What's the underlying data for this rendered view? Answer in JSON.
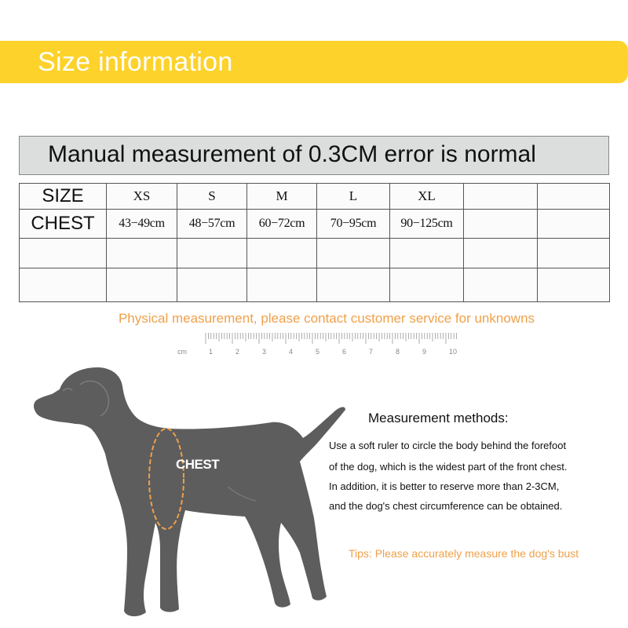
{
  "banner": {
    "title": "Size information"
  },
  "notice": {
    "text": "Manual measurement of 0.3CM error is normal"
  },
  "table": {
    "rows": [
      [
        "SIZE",
        "XS",
        "S",
        "M",
        "L",
        "XL",
        "",
        ""
      ],
      [
        "CHEST",
        "43−49cm",
        "48−57cm",
        "60−72cm",
        "70−95cm",
        "90−125cm",
        "",
        ""
      ],
      [
        "",
        "",
        "",
        "",
        "",
        "",
        "",
        ""
      ],
      [
        "",
        "",
        "",
        "",
        "",
        "",
        "",
        ""
      ]
    ]
  },
  "physical_note": "Physical measurement, please contact customer service for unknowns",
  "ruler": {
    "unit": "cm",
    "labels": [
      "1",
      "2",
      "3",
      "4",
      "5",
      "6",
      "7",
      "8",
      "9",
      "10"
    ]
  },
  "dog": {
    "chest_label": "CHEST"
  },
  "methods": {
    "title": "Measurement methods:",
    "lines": [
      "Use a soft ruler to circle the body behind the forefoot",
      "of the dog, which is the widest part of the front chest.",
      "In addition, it is better to reserve more than 2-3CM,",
      "and the dog's chest circumference can be obtained."
    ]
  },
  "tips": "Tips: Please accurately measure the dog's bust",
  "colors": {
    "banner": "#fdd22b",
    "accent_orange": "#f0a049",
    "dog": "#5d5d5d"
  }
}
